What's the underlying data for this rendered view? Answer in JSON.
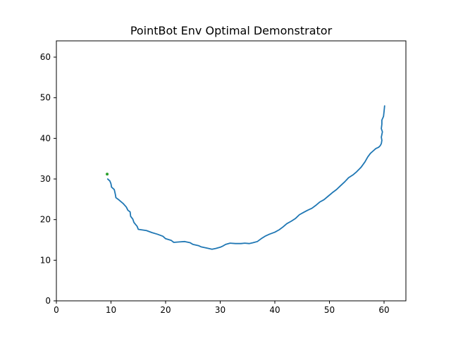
{
  "chart_data": {
    "type": "line",
    "title": "PointBot Env Optimal Demonstrator",
    "xlabel": "",
    "ylabel": "",
    "xlim": [
      0,
      64
    ],
    "ylim": [
      0,
      64
    ],
    "xticks": [
      0,
      10,
      20,
      30,
      40,
      50,
      60
    ],
    "yticks": [
      0,
      10,
      20,
      30,
      40,
      50,
      60
    ],
    "grid": false,
    "series": [
      {
        "color": "#1f77b4",
        "points": [
          [
            9.4,
            30.0
          ],
          [
            9.8,
            29.5
          ],
          [
            10.0,
            28.8
          ],
          [
            10.1,
            28.0
          ],
          [
            10.6,
            27.4
          ],
          [
            10.8,
            26.2
          ],
          [
            10.9,
            25.4
          ],
          [
            11.5,
            24.8
          ],
          [
            12.2,
            24.0
          ],
          [
            12.8,
            23.1
          ],
          [
            13.1,
            22.3
          ],
          [
            13.5,
            21.9
          ],
          [
            13.6,
            20.8
          ],
          [
            14.0,
            20.1
          ],
          [
            14.2,
            19.3
          ],
          [
            14.8,
            18.3
          ],
          [
            15.0,
            17.6
          ],
          [
            16.5,
            17.3
          ],
          [
            17.5,
            16.8
          ],
          [
            18.5,
            16.4
          ],
          [
            19.5,
            15.9
          ],
          [
            20.0,
            15.3
          ],
          [
            21.0,
            14.9
          ],
          [
            21.5,
            14.4
          ],
          [
            22.5,
            14.5
          ],
          [
            23.5,
            14.6
          ],
          [
            24.5,
            14.3
          ],
          [
            25.0,
            13.9
          ],
          [
            26.0,
            13.6
          ],
          [
            26.5,
            13.3
          ],
          [
            27.5,
            13.0
          ],
          [
            28.5,
            12.7
          ],
          [
            29.2,
            12.9
          ],
          [
            30.0,
            13.2
          ],
          [
            30.5,
            13.5
          ],
          [
            31.0,
            13.9
          ],
          [
            31.8,
            14.2
          ],
          [
            32.8,
            14.1
          ],
          [
            33.8,
            14.1
          ],
          [
            34.5,
            14.2
          ],
          [
            35.3,
            14.1
          ],
          [
            36.0,
            14.3
          ],
          [
            36.8,
            14.6
          ],
          [
            37.5,
            15.3
          ],
          [
            38.2,
            15.9
          ],
          [
            39.0,
            16.4
          ],
          [
            40.0,
            16.9
          ],
          [
            40.8,
            17.5
          ],
          [
            41.5,
            18.2
          ],
          [
            42.2,
            19.0
          ],
          [
            43.0,
            19.6
          ],
          [
            43.8,
            20.3
          ],
          [
            44.5,
            21.2
          ],
          [
            45.3,
            21.8
          ],
          [
            46.0,
            22.3
          ],
          [
            46.8,
            22.8
          ],
          [
            47.5,
            23.5
          ],
          [
            48.2,
            24.3
          ],
          [
            49.0,
            24.9
          ],
          [
            49.8,
            25.8
          ],
          [
            50.5,
            26.6
          ],
          [
            51.3,
            27.4
          ],
          [
            52.0,
            28.3
          ],
          [
            52.8,
            29.3
          ],
          [
            53.5,
            30.3
          ],
          [
            54.3,
            31.0
          ],
          [
            55.0,
            31.8
          ],
          [
            55.8,
            32.9
          ],
          [
            56.5,
            34.2
          ],
          [
            57.0,
            35.4
          ],
          [
            57.5,
            36.3
          ],
          [
            58.0,
            36.9
          ],
          [
            58.5,
            37.5
          ],
          [
            59.0,
            37.8
          ],
          [
            59.3,
            38.2
          ],
          [
            59.5,
            38.7
          ],
          [
            59.6,
            39.5
          ],
          [
            59.5,
            40.3
          ],
          [
            59.7,
            41.6
          ],
          [
            59.5,
            42.4
          ],
          [
            59.6,
            43.5
          ],
          [
            59.6,
            44.5
          ],
          [
            59.9,
            45.4
          ],
          [
            60.0,
            46.6
          ],
          [
            60.1,
            48.0
          ]
        ]
      }
    ],
    "markers": [
      {
        "color": "#2ca02c",
        "x": 9.3,
        "y": 31.2
      }
    ]
  }
}
